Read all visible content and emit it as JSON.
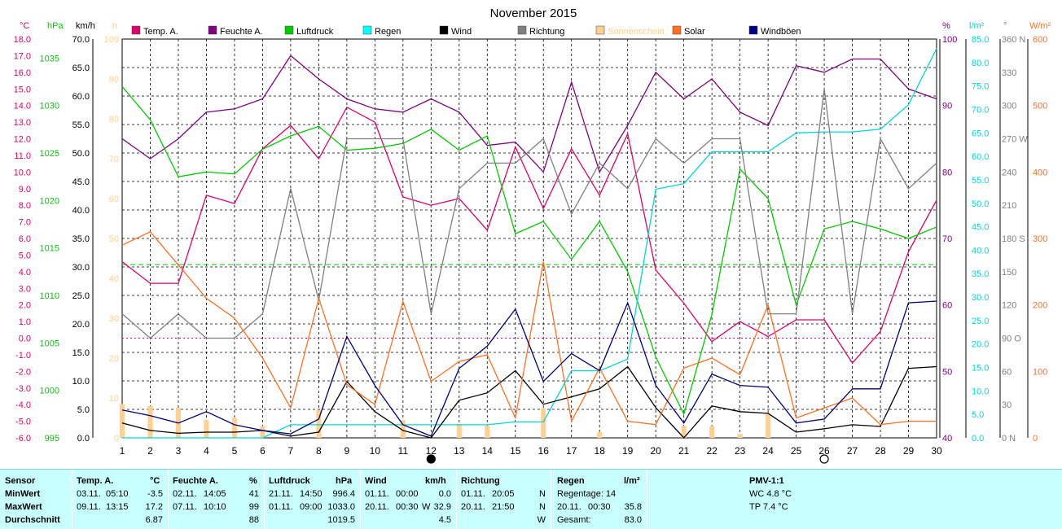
{
  "chart_data": {
    "type": "line",
    "title": "November 2015",
    "x": [
      1,
      2,
      3,
      4,
      5,
      6,
      7,
      8,
      9,
      10,
      11,
      12,
      13,
      14,
      15,
      16,
      17,
      18,
      19,
      20,
      21,
      22,
      23,
      24,
      25,
      26,
      27,
      28,
      29,
      30
    ],
    "axes": {
      "temp": {
        "unit": "°C",
        "min": -6,
        "max": 18,
        "ticks": [
          "18.0",
          "17.0",
          "16.0",
          "15.0",
          "14.0",
          "13.0",
          "12.0",
          "11.0",
          "10.0",
          "9.0",
          "8.0",
          "7.0",
          "6.0",
          "5.0",
          "4.0",
          "3.0",
          "2.0",
          "1.0",
          "0.0",
          "-1.0",
          "-2.0",
          "-3.0",
          "-4.0",
          "-5.0",
          "-6.0"
        ],
        "color": "#e0006c"
      },
      "pressure": {
        "unit": "hPa",
        "min": 995,
        "max": 1037,
        "ticks": [
          "1035",
          "1030",
          "1025",
          "1020",
          "1015",
          "1010",
          "1005",
          "1000",
          "995"
        ],
        "color": "#00cc00"
      },
      "wind": {
        "unit": "km/h",
        "min": 0,
        "max": 70,
        "ticks": [
          "70.0",
          "65.0",
          "60.0",
          "55.0",
          "50.0",
          "45.0",
          "40.0",
          "35.0",
          "30.0",
          "25.0",
          "20.0",
          "15.0",
          "10.0",
          "5.0",
          "0.0"
        ],
        "color": "#000000"
      },
      "sunshine": {
        "unit": "h",
        "min": 0,
        "max": 100,
        "ticks": [
          "100",
          "90",
          "80",
          "70",
          "60",
          "50",
          "40",
          "30",
          "20",
          "10",
          "0"
        ],
        "color": "#ffd090"
      },
      "humidity": {
        "unit": "%",
        "min": 40,
        "max": 100,
        "ticks": [
          "100",
          "90",
          "80",
          "70",
          "60",
          "50",
          "40"
        ],
        "color": "#800080"
      },
      "rain": {
        "unit": "l/m²",
        "min": 0,
        "max": 85,
        "ticks": [
          "85.0",
          "80.0",
          "75.0",
          "70.0",
          "65.0",
          "60.0",
          "55.0",
          "50.0",
          "45.0",
          "40.0",
          "35.0",
          "30.0",
          "25.0",
          "20.0",
          "15.0",
          "10.0",
          "5.0",
          "0.0"
        ],
        "color": "#00d8d8"
      },
      "direction": {
        "unit": "°",
        "min": 0,
        "max": 360,
        "ticks": [
          "360 N",
          "330",
          "300",
          "270 W",
          "240",
          "210",
          "180 S",
          "150",
          "120",
          "90 O",
          "60",
          "30",
          "0 N"
        ],
        "color": "#808080"
      },
      "solar": {
        "unit": "W/m²",
        "min": 0,
        "max": 600,
        "ticks": [
          "600",
          "500",
          "400",
          "300",
          "200",
          "100",
          "0"
        ],
        "color": "#ff7020"
      }
    },
    "series": [
      {
        "name": "Temp. A.",
        "axis": "temp",
        "color": "#e0006c",
        "values": [
          4.6,
          3.3,
          3.3,
          8.6,
          8.1,
          11.4,
          12.8,
          10.8,
          13.9,
          13.0,
          8.5,
          8.0,
          8.4,
          6.5,
          11.5,
          7.8,
          11.4,
          8.6,
          12.3,
          4.1,
          2.1,
          -0.2,
          1.0,
          0.1,
          1.1,
          1.1,
          -1.5,
          0.4,
          5.2,
          8.3
        ]
      },
      {
        "name": "Feuchte A.",
        "axis": "humidity",
        "color": "#800080",
        "values": [
          85,
          82,
          85,
          89,
          89.5,
          91,
          97.5,
          94,
          91,
          89.5,
          89,
          91,
          89,
          84,
          84.5,
          80,
          93.5,
          80,
          87,
          95,
          91,
          94,
          89,
          87,
          96,
          95,
          97,
          97,
          92.5,
          91
        ]
      },
      {
        "name": "Luftdruck",
        "axis": "pressure",
        "color": "#00cc00",
        "values": [
          1032,
          1028.5,
          1022.5,
          1023,
          1022.8,
          1025.4,
          1026.8,
          1027.8,
          1025.3,
          1025.5,
          1026,
          1027.5,
          1025.3,
          1026.8,
          1016.5,
          1017.8,
          1013.8,
          1017.8,
          1012.5,
          1003.5,
          997.5,
          1008,
          1023.3,
          1020.2,
          1009,
          1017,
          1017.8,
          1017,
          1016,
          1017.2
        ]
      },
      {
        "name": "Regen",
        "axis": "rain",
        "color": "#00d8d8",
        "values": [
          0,
          0,
          0,
          0,
          0,
          0,
          2.8,
          2.8,
          2.8,
          2.8,
          2.8,
          2.8,
          2.8,
          2.8,
          3.4,
          3.4,
          14.3,
          14.3,
          16.8,
          53.0,
          54.2,
          61.0,
          61.0,
          61.0,
          65.0,
          65.2,
          65.2,
          65.8,
          71.0,
          83.0
        ]
      },
      {
        "name": "Wind",
        "axis": "wind",
        "color": "#000000",
        "values": [
          2.6,
          1.3,
          0.8,
          1.0,
          1.0,
          1.3,
          0.3,
          1.0,
          9.9,
          4.6,
          1.3,
          0,
          6.6,
          7.9,
          11.8,
          5.9,
          7.2,
          8.6,
          12.5,
          5.3,
          0,
          5.6,
          4.6,
          4.3,
          1.0,
          1.6,
          2.3,
          2.0,
          12.2,
          12.5
        ]
      },
      {
        "name": "Richtung",
        "axis": "direction",
        "color": "#808080",
        "values": [
          112,
          90,
          112,
          90,
          90,
          112,
          225,
          124,
          270,
          270,
          270,
          112,
          225,
          248,
          248,
          270,
          202,
          248,
          225,
          270,
          248,
          270,
          270,
          112,
          112,
          315,
          112,
          270,
          225,
          248
        ]
      },
      {
        "name": "Sonnenschein",
        "axis": "sunshine",
        "type": "bar",
        "color": "#ffd090",
        "values": [
          8.5,
          8.0,
          7.5,
          4.5,
          5.0,
          3.0,
          0,
          7.0,
          0,
          0,
          4.5,
          0,
          3.5,
          3.0,
          0,
          7.5,
          0,
          1.5,
          0,
          0,
          3.0,
          3.0,
          1.0,
          6.0,
          0,
          0,
          0,
          0,
          0,
          0
        ]
      },
      {
        "name": "Solar",
        "axis": "solar",
        "color": "#ff7020",
        "values": [
          290,
          310,
          260,
          210,
          180,
          120,
          45,
          210,
          80,
          50,
          205,
          85,
          115,
          125,
          30,
          265,
          25,
          105,
          25,
          20,
          105,
          120,
          95,
          200,
          30,
          45,
          60,
          20,
          25,
          25
        ]
      },
      {
        "name": "Windböen",
        "axis": "wind",
        "color": "#000080",
        "values": [
          4.9,
          3.9,
          2.6,
          4.6,
          2.3,
          1.3,
          0.7,
          3.3,
          17.8,
          9.2,
          2.3,
          0.3,
          12.2,
          16.1,
          22.6,
          9.9,
          14.8,
          11.8,
          23.7,
          9.2,
          2.6,
          11.2,
          9.2,
          8.9,
          2.6,
          3.3,
          8.6,
          8.6,
          23.7,
          24.0
        ]
      }
    ],
    "reference_lines": {
      "temp_zero": 0.0,
      "pressure_dashed": 1013.25
    },
    "moon_phases": [
      {
        "day": 12,
        "phase": "new"
      },
      {
        "day": 26,
        "phase": "full"
      }
    ],
    "grid": true
  },
  "legend": [
    {
      "label": "Temp. A.",
      "color": "#e0006c"
    },
    {
      "label": "Feuchte A.",
      "color": "#800080"
    },
    {
      "label": "Luftdruck",
      "color": "#00cc00"
    },
    {
      "label": "Regen",
      "color": "#00ffff"
    },
    {
      "label": "Wind",
      "color": "#000000"
    },
    {
      "label": "Richtung",
      "color": "#808080"
    },
    {
      "label": "Sonnenschein",
      "color": "#ffd090"
    },
    {
      "label": "Solar",
      "color": "#ff7020"
    },
    {
      "label": "Windböen",
      "color": "#000080"
    }
  ],
  "stats": {
    "row_labels": [
      "Sensor",
      "MinWert",
      "MaxWert",
      "Durchschnitt"
    ],
    "temp": {
      "title": "Temp. A.",
      "unit": "°C",
      "min_date": "03.11.",
      "min_time": "05:10",
      "min": "-3.5",
      "max_date": "09.11.",
      "max_time": "13:15",
      "max": "17.2",
      "avg": "6.87"
    },
    "humidity": {
      "title": "Feuchte A.",
      "unit": "%",
      "min_date": "02.11.",
      "min_time": "14:05",
      "min": "41",
      "max_date": "07.11.",
      "max_time": "10:10",
      "max": "99",
      "avg": "88"
    },
    "pressure": {
      "title": "Luftdruck",
      "unit": "hPa",
      "min_date": "21.11.",
      "min_time": "14:50",
      "min": "996.4",
      "max_date": "01.11.",
      "max_time": "09:00",
      "max": "1033.0",
      "avg": "1019.5"
    },
    "wind": {
      "title": "Wind",
      "unit": "km/h",
      "min_date": "01.11.",
      "min_time": "00:00",
      "min": "0.0",
      "max_date": "20.11.",
      "max_time": "00:30",
      "max_dir": "W",
      "max": "32.9",
      "avg": "4.5"
    },
    "direction": {
      "title": "Richtung",
      "min_date": "01.11.",
      "min_time": "20:05",
      "min": "N",
      "max_date": "20.11.",
      "max_time": "21:50",
      "max": "N",
      "avg": "W"
    },
    "rain": {
      "title": "Regen",
      "unit": "l/m²",
      "rain_days": "Regentage: 14",
      "max_date": "20.11.",
      "max_time": "00:30",
      "max": "35.8",
      "total_label": "Gesamt:",
      "total": "83.0"
    },
    "pmv": {
      "title": "PMV-1:1",
      "wc": "WC 4.8 °C",
      "tp": "TP 7.4 °C"
    }
  }
}
